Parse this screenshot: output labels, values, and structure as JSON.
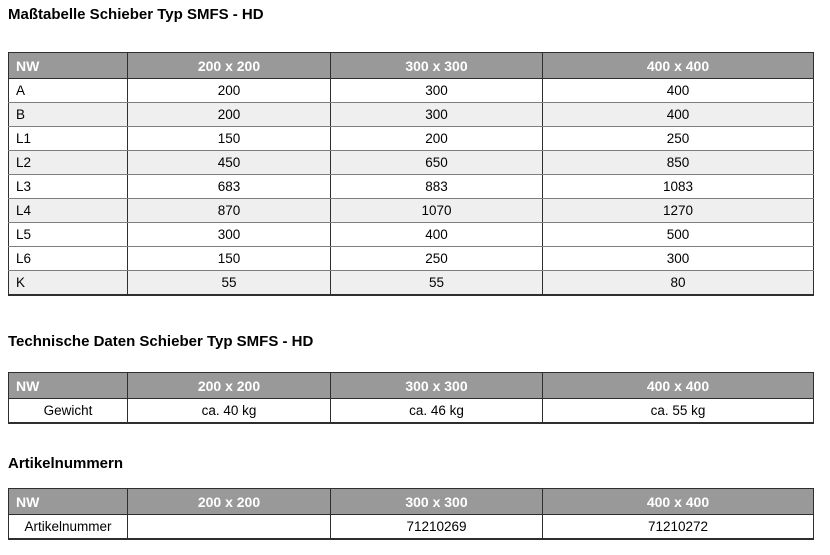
{
  "colors": {
    "header_bg": "#999999",
    "header_text": "#ffffff",
    "alt_row_bg": "#efefef",
    "row_bg": "#ffffff",
    "border_dark": "#2e2e2e",
    "border_light": "#7f7f7f",
    "text": "#000000"
  },
  "sections": [
    {
      "title": "Maßtabelle Schieber Typ SMFS - HD",
      "headers": [
        "NW",
        "200 x 200",
        "300 x 300",
        "400 x 400"
      ],
      "rows": [
        {
          "label": "A",
          "shaded": false,
          "values": [
            "200",
            "300",
            "400"
          ]
        },
        {
          "label": "B",
          "shaded": true,
          "values": [
            "200",
            "300",
            "400"
          ]
        },
        {
          "label": "L1",
          "shaded": false,
          "values": [
            "150",
            "200",
            "250"
          ]
        },
        {
          "label": "L2",
          "shaded": true,
          "values": [
            "450",
            "650",
            "850"
          ]
        },
        {
          "label": "L3",
          "shaded": false,
          "values": [
            "683",
            "883",
            "1083"
          ]
        },
        {
          "label": "L4",
          "shaded": true,
          "values": [
            "870",
            "1070",
            "1270"
          ]
        },
        {
          "label": "L5",
          "shaded": false,
          "values": [
            "300",
            "400",
            "500"
          ]
        },
        {
          "label": "L6",
          "shaded": false,
          "values": [
            "150",
            "250",
            "300"
          ]
        },
        {
          "label": "K",
          "shaded": true,
          "values": [
            "55",
            "55",
            "80"
          ]
        }
      ]
    },
    {
      "title": "Technische Daten Schieber Typ SMFS - HD",
      "headers": [
        "NW",
        "200 x 200",
        "300 x 300",
        "400 x 400"
      ],
      "rows": [
        {
          "label": "Gewicht",
          "shaded": false,
          "values": [
            "ca. 40 kg",
            "ca. 46 kg",
            "ca. 55 kg"
          ]
        }
      ]
    },
    {
      "title": "Artikelnummern",
      "headers": [
        "NW",
        "200 x 200",
        "300 x 300",
        "400 x 400"
      ],
      "rows": [
        {
          "label": "Artikelnummer",
          "shaded": false,
          "values": [
            "",
            "71210269",
            "71210272"
          ]
        }
      ]
    }
  ]
}
